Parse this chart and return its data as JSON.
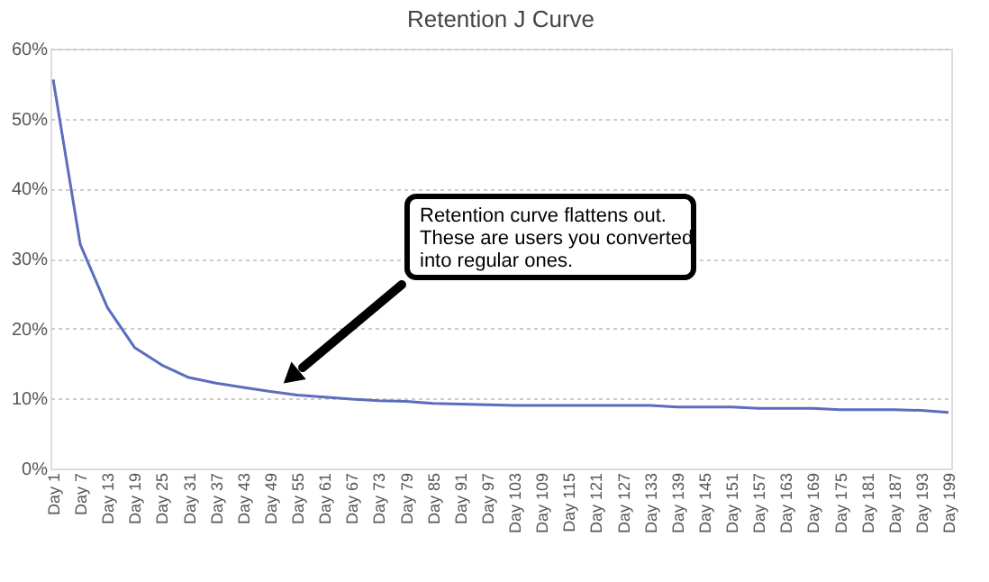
{
  "chart_data": {
    "type": "line",
    "title": "Retention J Curve",
    "categories": [
      "Day 1",
      "Day 7",
      "Day 13",
      "Day 19",
      "Day 25",
      "Day 31",
      "Day 37",
      "Day 43",
      "Day 49",
      "Day 55",
      "Day 61",
      "Day 67",
      "Day 73",
      "Day 79",
      "Day 85",
      "Day 91",
      "Day 97",
      "Day 103",
      "Day 109",
      "Day 115",
      "Day 121",
      "Day 127",
      "Day 133",
      "Day 139",
      "Day 145",
      "Day 151",
      "Day 157",
      "Day 163",
      "Day 169",
      "Day 175",
      "Day 181",
      "Day 187",
      "Day 193",
      "Day 199"
    ],
    "series": [
      {
        "color": "#5b6dbd",
        "values": [
          55.6,
          32,
          23,
          17.3,
          14.8,
          13,
          12.2,
          11.6,
          11,
          10.5,
          10.2,
          9.9,
          9.7,
          9.6,
          9.3,
          9.2,
          9.1,
          9,
          9,
          9,
          9,
          9,
          9,
          8.8,
          8.8,
          8.8,
          8.6,
          8.6,
          8.6,
          8.4,
          8.4,
          8.4,
          8.3,
          8
        ]
      }
    ],
    "ylim": [
      0,
      60
    ],
    "yticks": [
      {
        "value": 0,
        "label": "0%"
      },
      {
        "value": 10,
        "label": "10%"
      },
      {
        "value": 20,
        "label": "20%"
      },
      {
        "value": 30,
        "label": "30%"
      },
      {
        "value": 40,
        "label": "40%"
      },
      {
        "value": 50,
        "label": "50%"
      },
      {
        "value": 60,
        "label": "60%"
      }
    ],
    "grid": "y",
    "marker": "none",
    "line_style": "solid",
    "legend": false,
    "annotations": [
      "Retention curve flattens out.\nThese are users you converted\ninto regular ones."
    ]
  }
}
